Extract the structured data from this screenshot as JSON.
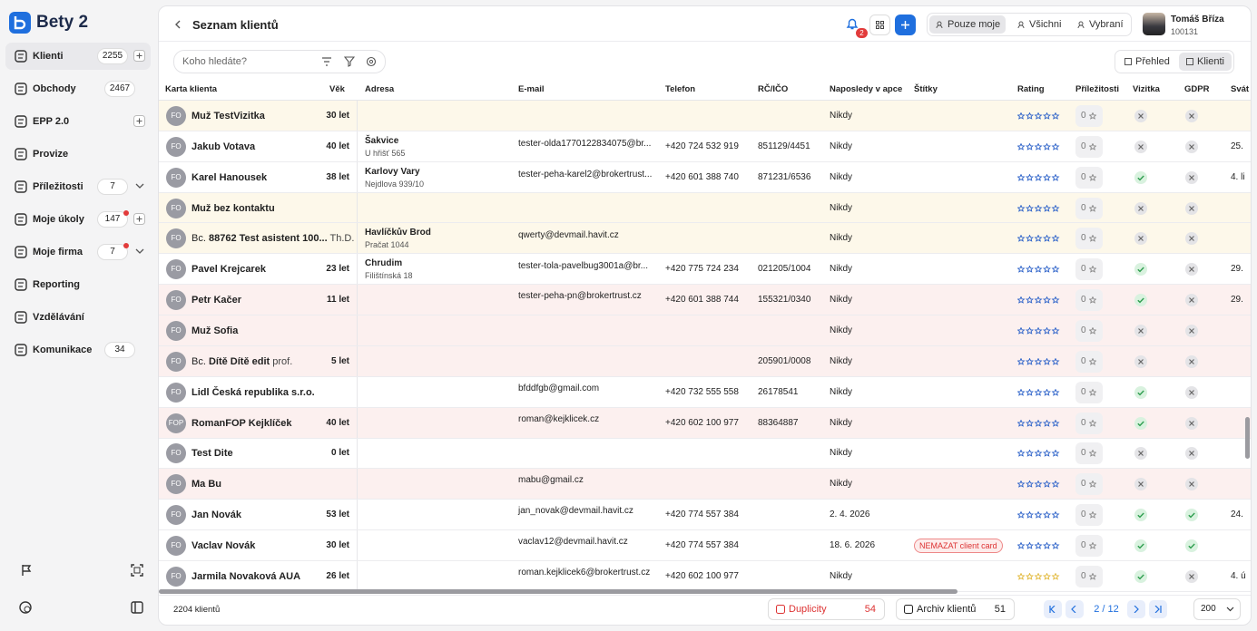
{
  "sidebar": {
    "brand": "Bety 2",
    "nav": [
      {
        "label": "Klienti",
        "count": 2255,
        "plus": true,
        "active": true
      },
      {
        "label": "Obchody",
        "count": 2467
      },
      {
        "label": "EPP 2.0",
        "plus": true
      },
      {
        "label": "Provize"
      },
      {
        "label": "Příležitosti",
        "count": 7,
        "chevron": true
      },
      {
        "label": "Moje úkoly",
        "count": 147,
        "dot": true,
        "plus": true
      },
      {
        "label": "Moje firma",
        "count": 7,
        "dot": true,
        "chevron": true
      },
      {
        "label": "Reporting"
      },
      {
        "label": "Vzdělávání"
      },
      {
        "label": "Komunikace",
        "count": 34
      }
    ]
  },
  "header": {
    "title": "Seznam klientů",
    "notifications": 2,
    "filters": [
      "Pouze moje",
      "Všichni",
      "Vybraní"
    ],
    "active_filter": 0,
    "user": {
      "name": "Tomáš Bříza",
      "id": "100131"
    }
  },
  "toolbar": {
    "search_placeholder": "Koho hledáte?",
    "views": [
      "Přehled",
      "Klienti"
    ],
    "active_view": 1
  },
  "table": {
    "columns": [
      "Karta klienta",
      "Věk",
      "Adresa",
      "E-mail",
      "Telefon",
      "RČ/IČO",
      "Naposledy v apce",
      "Štítky",
      "Rating",
      "Příležitosti",
      "Vizitka",
      "GDPR",
      "Svát"
    ],
    "rows": [
      {
        "avatar": "FO",
        "name": "Muž TestVizitka",
        "age": "30 let",
        "last": "Nikdy",
        "opportunities": 0,
        "card": false,
        "gdpr": false,
        "tone": "warn"
      },
      {
        "avatar": "FO",
        "name": "Jakub Votava",
        "age": "40 let",
        "city": "Šakvice",
        "street": "U hřišť 565",
        "email": "tester-olda1770122834075@br...",
        "phone": "+420 724 532 919",
        "id": "851129/4451",
        "last": "Nikdy",
        "opportunities": 0,
        "card": false,
        "gdpr": false,
        "holiday": "25.",
        "tone": "plain"
      },
      {
        "avatar": "FO",
        "name": "Karel Hanousek",
        "age": "38 let",
        "city": "Karlovy Vary",
        "street": "Nejdlova 939/10",
        "email": "tester-peha-karel2@brokertrust...",
        "phone": "+420 601 388 740",
        "id": "871231/6536",
        "last": "Nikdy",
        "opportunities": 0,
        "card": true,
        "gdpr": false,
        "holiday": "4. li",
        "tone": "plain"
      },
      {
        "avatar": "FO",
        "name": "Muž bez kontaktu",
        "last": "Nikdy",
        "opportunities": 0,
        "card": false,
        "gdpr": false,
        "tone": "warn"
      },
      {
        "avatar": "FO",
        "prefix": "Bc.",
        "name": "88762 Test asistent 100...",
        "suffix": "Th.D.",
        "city": "Havlíčkův Brod",
        "street": "Pračat 1044",
        "email": "qwerty@devmail.havit.cz",
        "last": "Nikdy",
        "opportunities": 0,
        "card": false,
        "gdpr": false,
        "tone": "warn"
      },
      {
        "avatar": "FO",
        "name": "Pavel Krejcarek",
        "age": "23 let",
        "city": "Chrudim",
        "street": "Filištínská 18",
        "email": "tester-tola-pavelbug3001a@br...",
        "phone": "+420 775 724 234",
        "id": "021205/1004",
        "last": "Nikdy",
        "opportunities": 0,
        "card": true,
        "gdpr": false,
        "holiday": "29.",
        "tone": "plain"
      },
      {
        "avatar": "FO",
        "name": "Petr Kačer",
        "age": "11 let",
        "email": "tester-peha-pn@brokertrust.cz",
        "phone": "+420 601 388 744",
        "id": "155321/0340",
        "last": "Nikdy",
        "opportunities": 0,
        "card": true,
        "gdpr": false,
        "holiday": "29.",
        "tone": "alert"
      },
      {
        "avatar": "FO",
        "name": "Muž Sofia",
        "last": "Nikdy",
        "opportunities": 0,
        "card": false,
        "gdpr": false,
        "tone": "alert"
      },
      {
        "avatar": "FO",
        "prefix": "Bc.",
        "name": "Dítě Dítě edit",
        "suffix": "prof.",
        "age": "5 let",
        "id": "205901/0008",
        "last": "Nikdy",
        "opportunities": 0,
        "card": false,
        "gdpr": false,
        "tone": "alert"
      },
      {
        "avatar": "FO",
        "name": "Lidl Česká republika s.r.o.",
        "email": "bfddfgb@gmail.com",
        "phone": "+420 732 555 558",
        "id": "26178541",
        "last": "Nikdy",
        "opportunities": 0,
        "card": true,
        "gdpr": false,
        "tone": "plain"
      },
      {
        "avatar": "FOP",
        "name": "RomanFOP Kejklíček",
        "age": "40 let",
        "email": "roman@kejklicek.cz",
        "phone": "+420 602 100 977",
        "id": "88364887",
        "last": "Nikdy",
        "opportunities": 0,
        "card": true,
        "gdpr": false,
        "tone": "alert"
      },
      {
        "avatar": "FO",
        "name": "Test Dite",
        "age": "0 let",
        "last": "Nikdy",
        "opportunities": 0,
        "card": false,
        "gdpr": false,
        "tone": "plain"
      },
      {
        "avatar": "FO",
        "name": "Ma Bu",
        "email": "mabu@gmail.cz",
        "last": "Nikdy",
        "opportunities": 0,
        "card": false,
        "gdpr": false,
        "tone": "alert"
      },
      {
        "avatar": "FO",
        "name": "Jan Novák",
        "age": "53 let",
        "email": "jan_novak@devmail.havit.cz",
        "phone": "+420 774 557 384",
        "last": "2. 4. 2026",
        "opportunities": 0,
        "card": true,
        "gdpr": true,
        "holiday": "24.",
        "tone": "plain"
      },
      {
        "avatar": "FO",
        "name": "Vaclav Novák",
        "age": "30 let",
        "email": "vaclav12@devmail.havit.cz",
        "phone": "+420 774 557 384",
        "last": "18. 6. 2026",
        "tag": "NEMAZAT client card",
        "opportunities": 0,
        "card": true,
        "gdpr": true,
        "tone": "plain"
      },
      {
        "avatar": "FO",
        "name": "Jarmila Novaková AUA",
        "age": "26 let",
        "email": "roman.kejklicek6@brokertrust.cz",
        "phone": "+420 602 100 977",
        "last": "Nikdy",
        "opportunities": 0,
        "card": true,
        "gdpr": false,
        "holiday": "4. ú",
        "rating_color": "#e2b93b",
        "tone": "plain"
      }
    ]
  },
  "footer": {
    "total": "2204 klientů",
    "duplicates": {
      "label": "Duplicity",
      "count": 54
    },
    "archive": {
      "label": "Archiv klientů",
      "count": 51
    },
    "page": "2 / 12",
    "page_size": 200
  }
}
